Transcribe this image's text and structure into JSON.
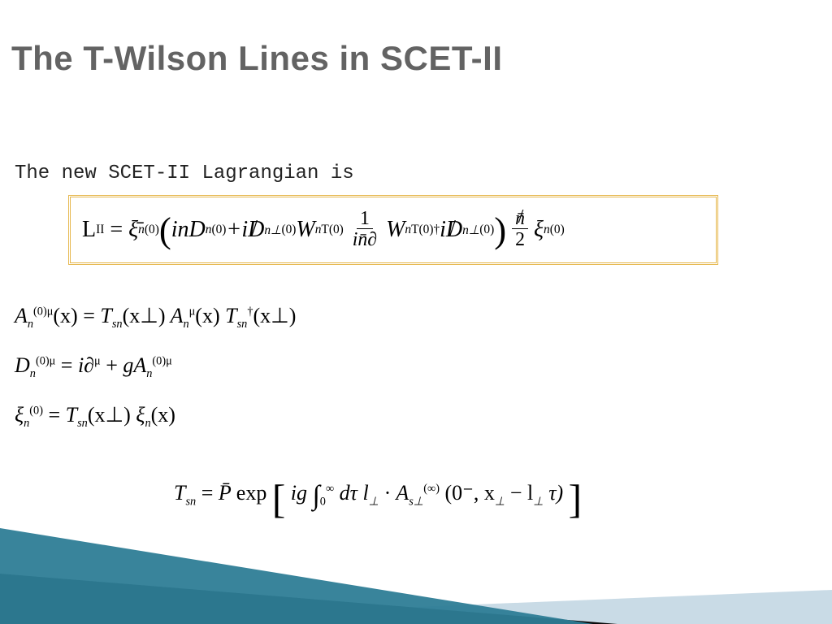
{
  "slide": {
    "title": "The T-Wilson Lines in SCET-II",
    "intro": "The new SCET-II Lagrangian is",
    "title_color": "#636363",
    "title_fontsize": 42,
    "intro_fontsize": 24,
    "box_border_color": "#e6b84f",
    "background_color": "#ffffff"
  },
  "lagrangian": {
    "lhs_roman": "L",
    "lhs_sub": "II",
    "xi_bar": "ξ̄",
    "sup0": "(0)",
    "sub_n": "n",
    "term1_pre": "inD",
    "plus": " + ",
    "i": "i",
    "Dslash": "D",
    "perp": "n⊥",
    "W": "W",
    "WsupT": "T(0)",
    "one": "1",
    "den": "in̄∂",
    "Wdag": "T(0)†",
    "nbar_slash": "n̄",
    "two": "2",
    "xi": "ξ"
  },
  "eqs": {
    "A": "A",
    "D": "D",
    "xi": "ξ",
    "T": "T",
    "sup0mu": "(0)μ",
    "mu": "μ",
    "sub_n": "n",
    "sub_sn": "sn",
    "x": "(x)",
    "xperp": "(x⊥)",
    "dag": "†",
    "eq": " = ",
    "ipartial": "i∂",
    "plus": " + ",
    "g": "g",
    "sup0": "(0)"
  },
  "tline": {
    "T": "T",
    "sub_sn": "sn",
    "eq": " = ",
    "Pbar": "P̄",
    "exp": " exp",
    "ig": "ig",
    "int_lo": "0",
    "int_hi": "∞",
    "dtau": "dτ l",
    "perp": "⊥",
    "dot": "·",
    "A": "A",
    "sub_sperp": "s⊥",
    "sup_inf": "(∞)",
    "args": "(0⁻, x",
    "minus": " − l",
    "tau": "τ)"
  },
  "decor": {
    "teal": "#2e7d96",
    "black": "#0a0a0a",
    "light": "#c9dbe6"
  }
}
